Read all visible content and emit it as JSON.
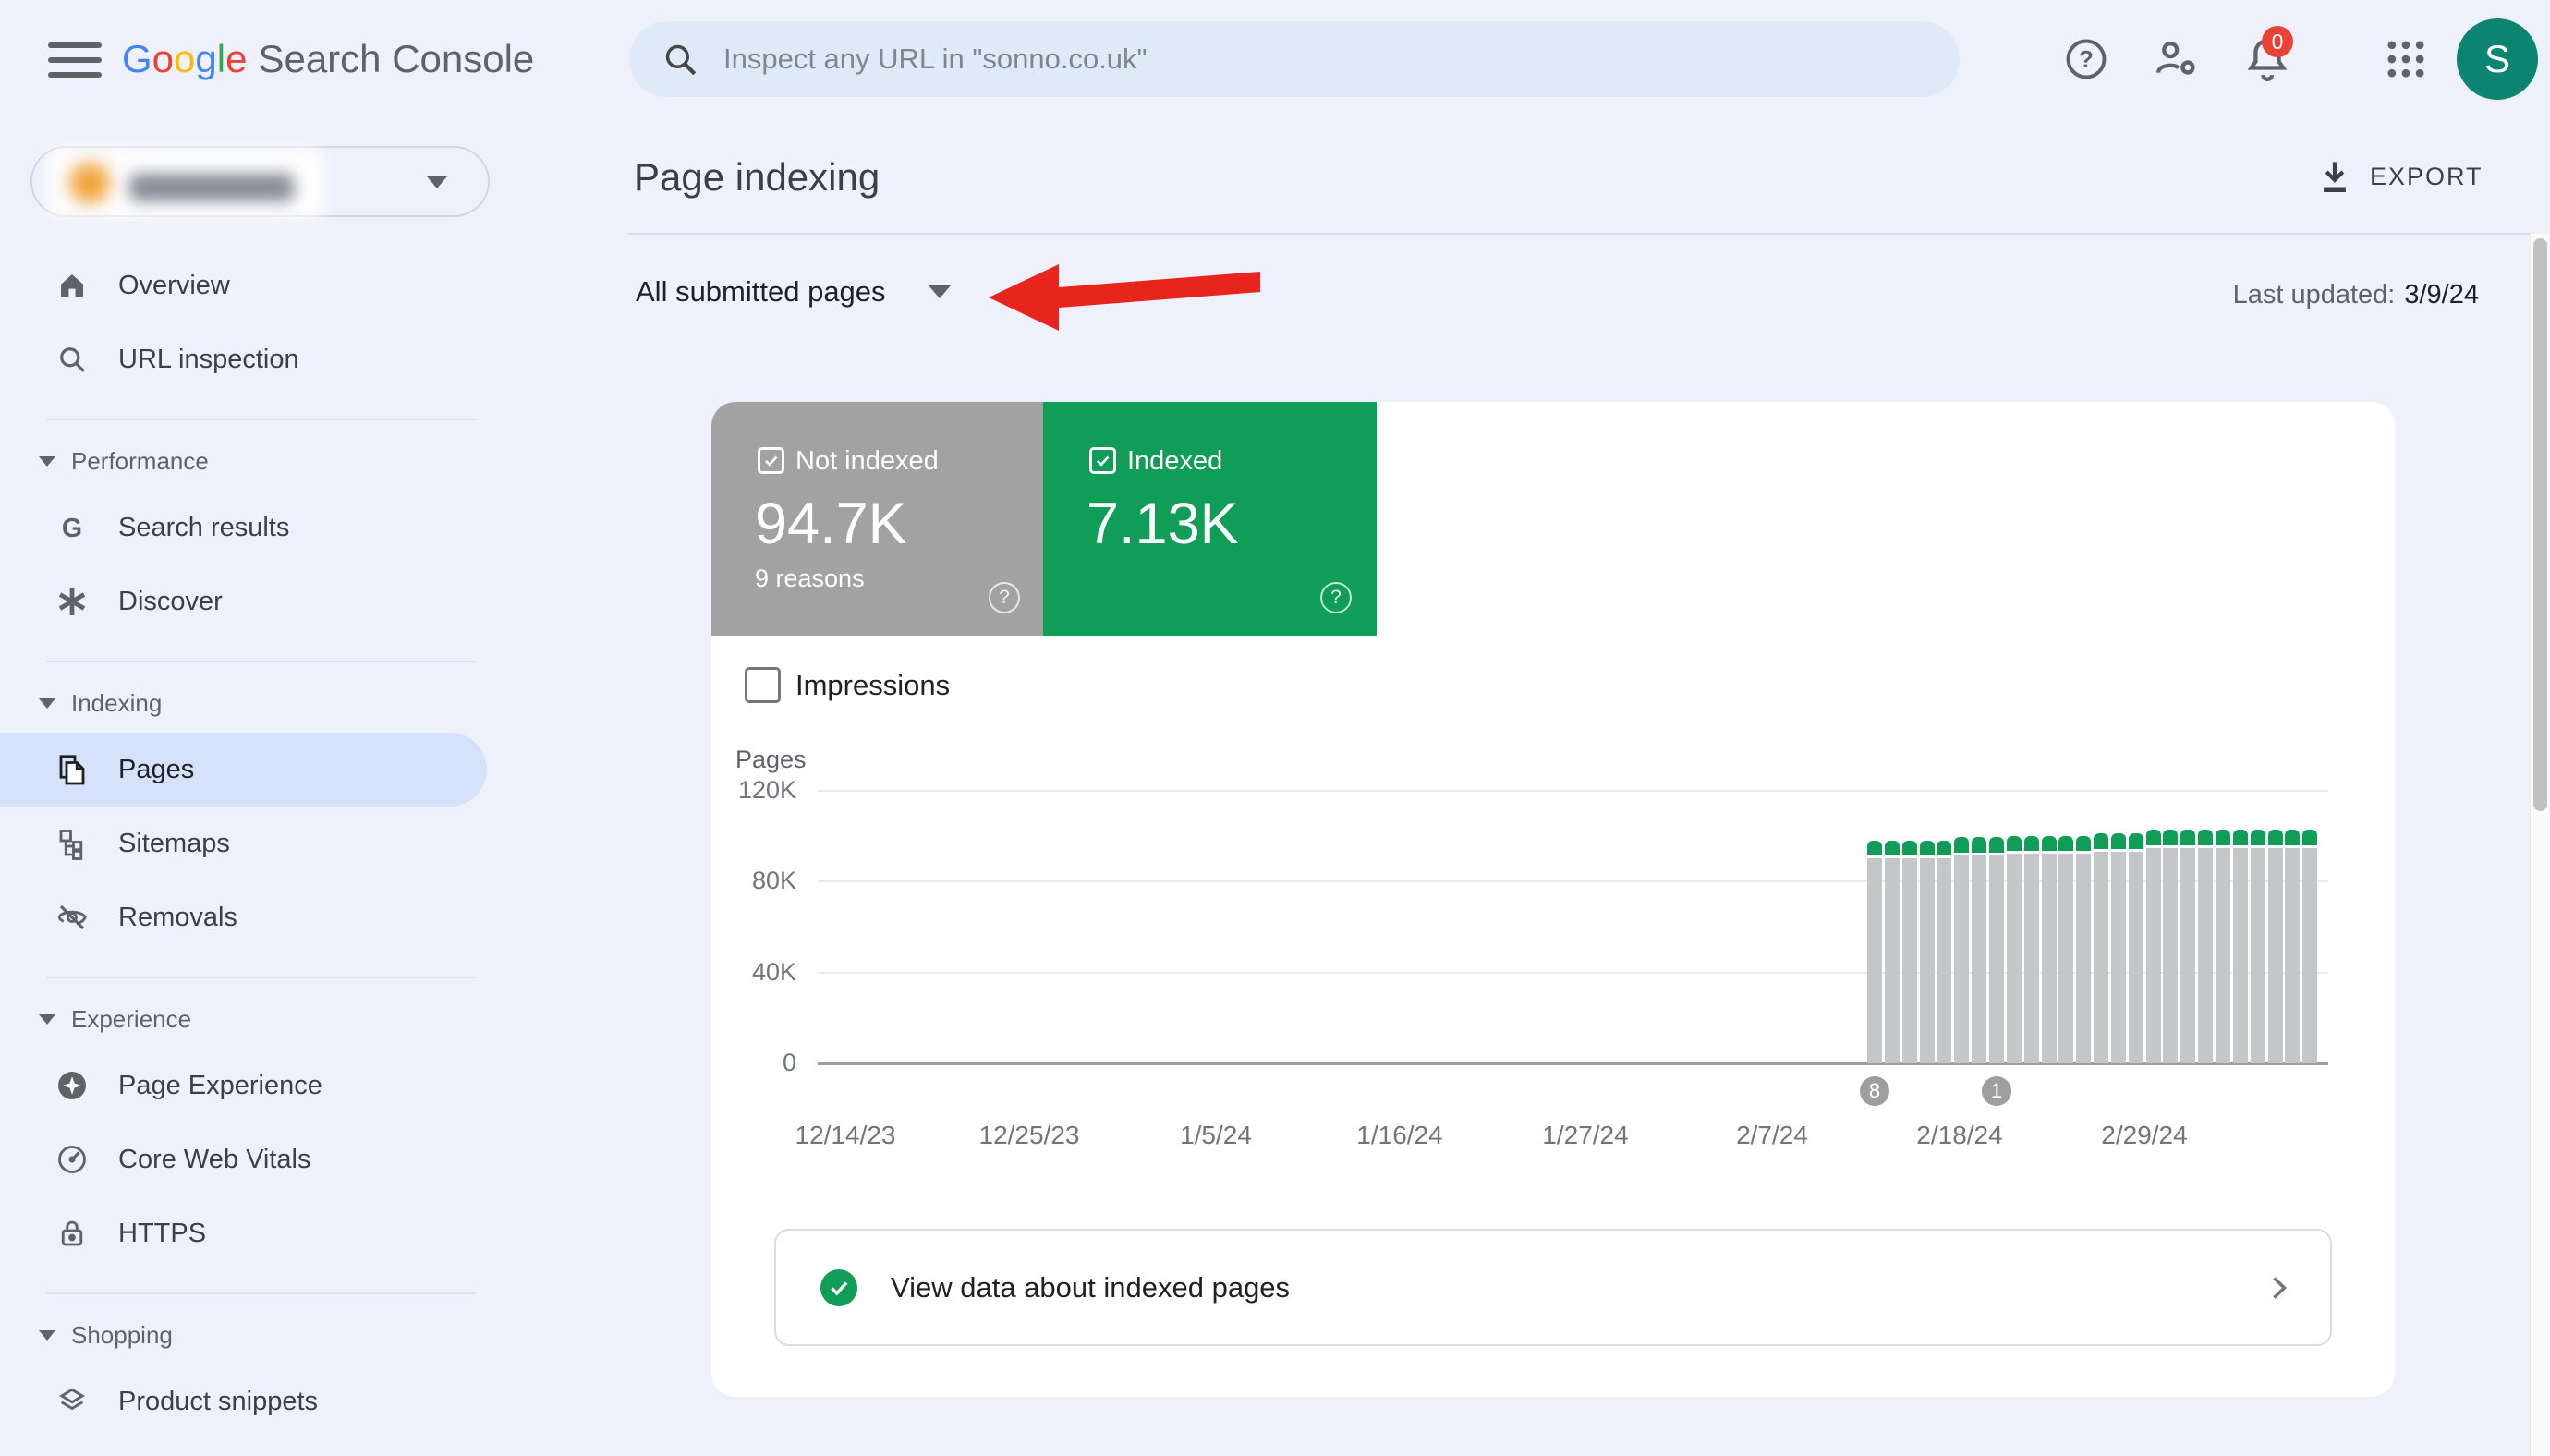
{
  "header": {
    "logo_letters": [
      {
        "ch": "G",
        "color": "#4285F4"
      },
      {
        "ch": "o",
        "color": "#EA4335"
      },
      {
        "ch": "o",
        "color": "#FBBC05"
      },
      {
        "ch": "g",
        "color": "#4285F4"
      },
      {
        "ch": "l",
        "color": "#34A853"
      },
      {
        "ch": "e",
        "color": "#EA4335"
      }
    ],
    "product_name": "Search Console",
    "search_placeholder": "Inspect any URL in \"sonno.co.uk\"",
    "notification_badge": "0",
    "avatar_initial": "S"
  },
  "sidebar": {
    "property": {
      "redacted": true
    },
    "items_top": [
      {
        "label": "Overview",
        "icon": "home-icon"
      },
      {
        "label": "URL inspection",
        "icon": "search-icon"
      }
    ],
    "sections": [
      {
        "label": "Performance",
        "items": [
          {
            "label": "Search results",
            "icon": "google-g-icon"
          },
          {
            "label": "Discover",
            "icon": "discover-icon"
          }
        ]
      },
      {
        "label": "Indexing",
        "items": [
          {
            "label": "Pages",
            "icon": "pages-icon",
            "selected": true
          },
          {
            "label": "Sitemaps",
            "icon": "sitemaps-icon"
          },
          {
            "label": "Removals",
            "icon": "removals-icon"
          }
        ]
      },
      {
        "label": "Experience",
        "items": [
          {
            "label": "Page Experience",
            "icon": "page-experience-icon"
          },
          {
            "label": "Core Web Vitals",
            "icon": "core-web-vitals-icon"
          },
          {
            "label": "HTTPS",
            "icon": "https-lock-icon"
          }
        ]
      },
      {
        "label": "Shopping",
        "items": [
          {
            "label": "Product snippets",
            "icon": "product-snippets-icon"
          }
        ]
      }
    ]
  },
  "main": {
    "page_title": "Page indexing",
    "export_label": "EXPORT",
    "filter_dropdown": "All submitted pages",
    "last_updated_label": "Last updated:",
    "last_updated_value": "3/9/24",
    "cards": [
      {
        "label": "Not indexed",
        "value": "94.7K",
        "sub": "9 reasons",
        "color": "#a2a2a2",
        "help": "?"
      },
      {
        "label": "Indexed",
        "value": "7.13K",
        "sub": "",
        "color": "#0f9d58",
        "help": "?"
      }
    ],
    "impressions_label": "Impressions",
    "view_data_label": "View data about indexed pages"
  },
  "chart_data": {
    "type": "bar",
    "stacked": true,
    "ylabel": "Pages",
    "ylim": [
      0,
      120000
    ],
    "yticks": [
      {
        "label": "120K",
        "value": 120000
      },
      {
        "label": "80K",
        "value": 80000
      },
      {
        "label": "40K",
        "value": 40000
      },
      {
        "label": "0",
        "value": 0
      }
    ],
    "xticklabels": [
      "12/14/23",
      "12/25/23",
      "1/5/24",
      "1/16/24",
      "1/27/24",
      "2/7/24",
      "2/18/24",
      "2/29/24"
    ],
    "series": [
      {
        "name": "Not indexed",
        "color": "#c5c6c7"
      },
      {
        "name": "Indexed",
        "color": "#0f9d58"
      }
    ],
    "bars": [
      {
        "date": "2/13/24",
        "not_indexed": 90300,
        "indexed": 6600
      },
      {
        "date": "2/14/24",
        "not_indexed": 90300,
        "indexed": 6600
      },
      {
        "date": "2/15/24",
        "not_indexed": 90300,
        "indexed": 6600
      },
      {
        "date": "2/16/24",
        "not_indexed": 90300,
        "indexed": 6600
      },
      {
        "date": "2/17/24",
        "not_indexed": 90300,
        "indexed": 6600
      },
      {
        "date": "2/18/24",
        "not_indexed": 91400,
        "indexed": 6900
      },
      {
        "date": "2/19/24",
        "not_indexed": 91400,
        "indexed": 6900
      },
      {
        "date": "2/20/24",
        "not_indexed": 91400,
        "indexed": 6900
      },
      {
        "date": "2/21/24",
        "not_indexed": 92200,
        "indexed": 6600
      },
      {
        "date": "2/22/24",
        "not_indexed": 92200,
        "indexed": 6600
      },
      {
        "date": "2/23/24",
        "not_indexed": 92200,
        "indexed": 6600
      },
      {
        "date": "2/24/24",
        "not_indexed": 92200,
        "indexed": 6600
      },
      {
        "date": "2/25/24",
        "not_indexed": 92200,
        "indexed": 6600
      },
      {
        "date": "2/26/24",
        "not_indexed": 93300,
        "indexed": 6800
      },
      {
        "date": "2/27/24",
        "not_indexed": 93300,
        "indexed": 6800
      },
      {
        "date": "2/28/24",
        "not_indexed": 93300,
        "indexed": 6800
      },
      {
        "date": "2/29/24",
        "not_indexed": 94700,
        "indexed": 7100
      },
      {
        "date": "3/1/24",
        "not_indexed": 94700,
        "indexed": 7100
      },
      {
        "date": "3/2/24",
        "not_indexed": 94700,
        "indexed": 7100
      },
      {
        "date": "3/3/24",
        "not_indexed": 94700,
        "indexed": 7100
      },
      {
        "date": "3/4/24",
        "not_indexed": 94700,
        "indexed": 7100
      },
      {
        "date": "3/5/24",
        "not_indexed": 94700,
        "indexed": 7100
      },
      {
        "date": "3/6/24",
        "not_indexed": 94700,
        "indexed": 7100
      },
      {
        "date": "3/7/24",
        "not_indexed": 94700,
        "indexed": 7100
      },
      {
        "date": "3/8/24",
        "not_indexed": 94700,
        "indexed": 7100
      },
      {
        "date": "3/9/24",
        "not_indexed": 94700,
        "indexed": 7100
      }
    ],
    "axis_markers": [
      {
        "bar_index": 0,
        "label": "8"
      },
      {
        "bar_index": 7,
        "label": "1"
      }
    ],
    "grid": true,
    "legend_position": "none"
  },
  "annotation": {
    "type": "arrow",
    "color": "#e8251c",
    "points_to": "filter-dropdown"
  },
  "colors": {
    "page_bg": "#eef1fb",
    "search_bg": "#dfe9f8",
    "selected_pill": "#d6e2fb",
    "accent_green": "#0f9d58",
    "card_gray": "#a2a2a2",
    "bar_gray": "#c5c6c7",
    "arrow_red": "#e8251c",
    "badge_red": "#ea4335",
    "avatar_teal": "#0b8472"
  }
}
